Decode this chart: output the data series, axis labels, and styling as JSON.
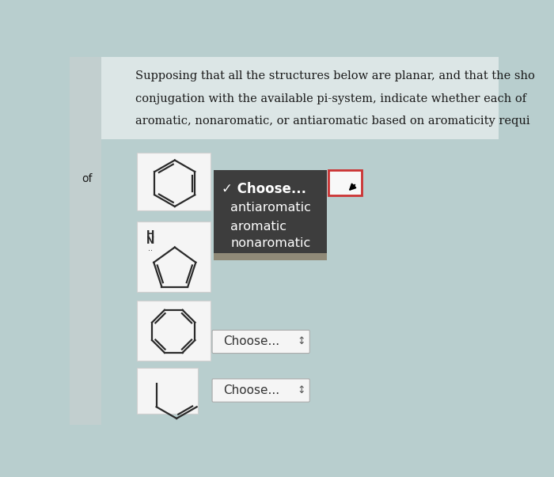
{
  "bg_color": "#b8cece",
  "left_strip_color": "#c5d2d2",
  "header_bg_color": "#dce6e6",
  "text_color": "#1a1a1a",
  "header_text_line1": "Supposing that all the structures below are planar, and that the sho",
  "header_text_line2": "conjugation with the available pi-system, indicate whether each of ",
  "header_text_line3": "aromatic, nonaromatic, or antiaromatic based on aromaticity requi",
  "of_label": "of",
  "dropdown_dark_bg": "#3d3d3d",
  "dropdown_border_color": "#cc3333",
  "choose_check": "✓ Choose...",
  "antiaromatic": "antiaromatic",
  "aromatic": "aromatic",
  "nonaromatic": "nonaromatic",
  "choose_plain": "Choose...",
  "molecule_bg": "#f5f5f5",
  "mol_line_color": "#2a2a2a"
}
